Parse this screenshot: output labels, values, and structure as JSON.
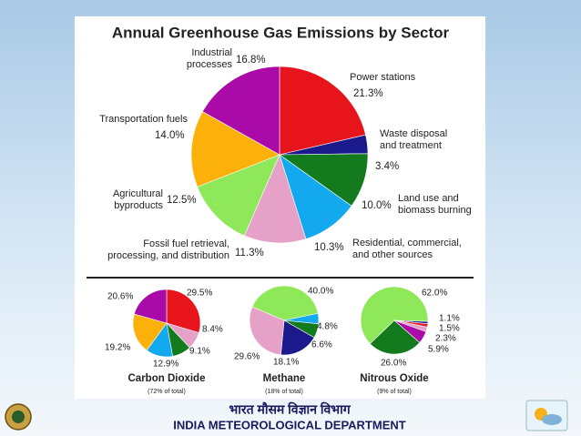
{
  "chart_data": [
    {
      "type": "pie",
      "title": "Annual Greenhouse Gas Emissions by Sector",
      "categories": [
        "Power stations",
        "Waste disposal and treatment",
        "Land use and biomass burning",
        "Residential, commercial, and other sources",
        "Fossil fuel retrieval, processing, and distribution",
        "Agricultural byproducts",
        "Transportation fuels",
        "Industrial processes"
      ],
      "values": [
        21.3,
        3.4,
        10.0,
        10.3,
        11.3,
        12.5,
        14.0,
        16.8
      ],
      "value_labels": [
        "21.3%",
        "3.4%",
        "10.0%",
        "10.3%",
        "11.3%",
        "12.5%",
        "14.0%",
        "16.8%"
      ],
      "colors": [
        "#e8141c",
        "#1a1a8c",
        "#137a1e",
        "#12a9ef",
        "#e6a1c8",
        "#8ee85a",
        "#fbb109",
        "#aa0aa8"
      ]
    },
    {
      "type": "pie",
      "title": "Carbon Dioxide",
      "subtitle": "(72% of total)",
      "values": [
        29.5,
        8.4,
        9.1,
        12.9,
        19.2,
        20.6
      ],
      "value_labels": [
        "29.5%",
        "8.4%",
        "9.1%",
        "12.9%",
        "19.2%",
        "20.6%"
      ],
      "colors": [
        "#e8141c",
        "#e6a1c8",
        "#137a1e",
        "#12a9ef",
        "#fbb109",
        "#aa0aa8"
      ]
    },
    {
      "type": "pie",
      "title": "Methane",
      "subtitle": "(18% of total)",
      "values": [
        40.0,
        4.8,
        6.6,
        18.1,
        29.6
      ],
      "value_labels": [
        "40.0%",
        "4.8%",
        "6.6%",
        "18.1%",
        "29.6%"
      ],
      "colors": [
        "#8ee85a",
        "#12a9ef",
        "#137a1e",
        "#1a1a8c",
        "#e6a1c8"
      ]
    },
    {
      "type": "pie",
      "title": "Nitrous Oxide",
      "subtitle": "(9% of total)",
      "values": [
        62.0,
        1.1,
        1.5,
        2.3,
        5.9,
        26.0
      ],
      "value_labels": [
        "62.0%",
        "1.1%",
        "1.5%",
        "2.3%",
        "5.9%",
        "26.0%"
      ],
      "colors": [
        "#8ee85a",
        "#1a1a8c",
        "#e8141c",
        "#e6a1c8",
        "#aa0aa8",
        "#137a1e"
      ]
    }
  ],
  "footer": {
    "hindi": "भारत मौसम विज्ञान विभाग",
    "english": "INDIA METEOROLOGICAL DEPARTMENT"
  }
}
